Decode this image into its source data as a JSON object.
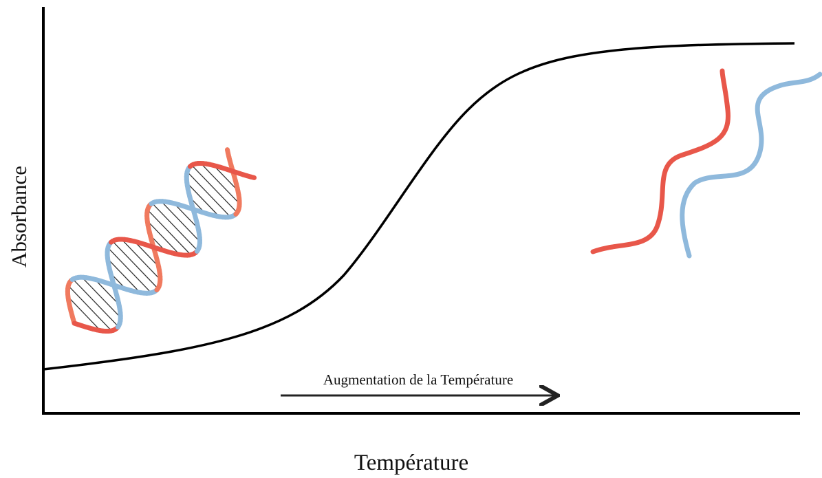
{
  "y_axis_label": "Absorbance",
  "x_axis_label": "Température",
  "annotation": "Augmentation de la Température"
}
